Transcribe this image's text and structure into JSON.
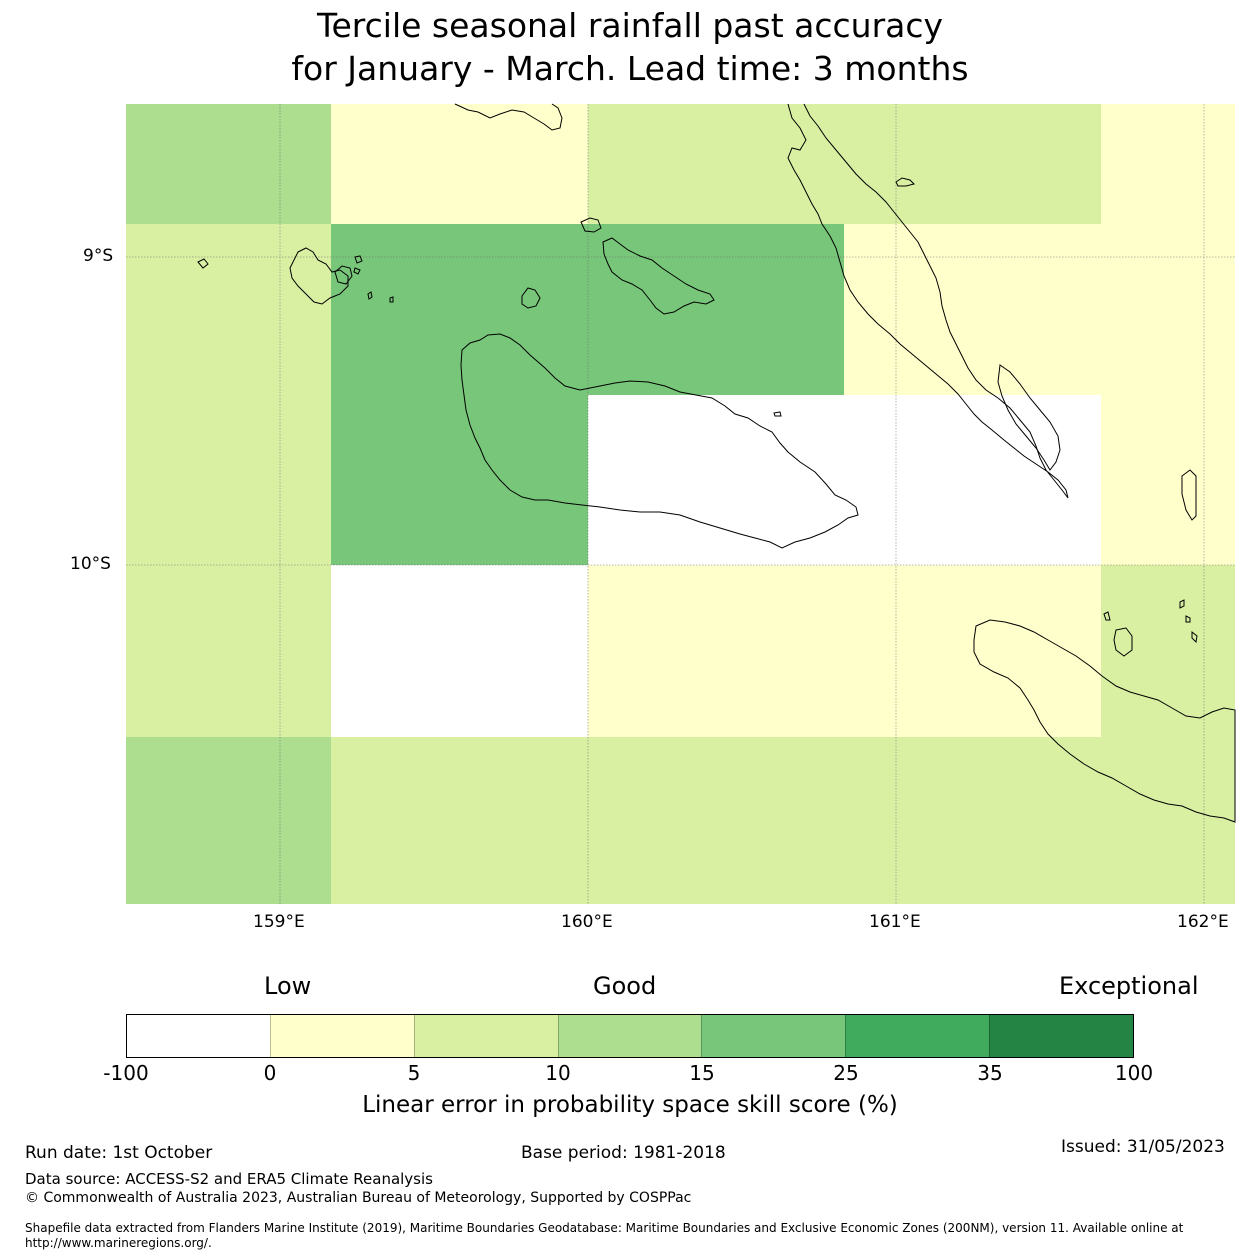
{
  "title": {
    "line1": "Tercile seasonal rainfall past accuracy",
    "line2": "for January - March. Lead time: 3 months"
  },
  "map": {
    "lat_labels": [
      "9°S",
      "10°S"
    ],
    "lon_labels": [
      "159°E",
      "160°E",
      "161°E",
      "162°E"
    ],
    "extent": {
      "lon_min": 158.5,
      "lon_max": 162.1,
      "lat_max": -8.5,
      "lat_min": -11.1
    },
    "skill_cells": [
      {
        "lon_range": [
          158.5,
          159.167
        ],
        "lat_range": [
          -8.5,
          -8.889
        ],
        "category": "10-15"
      },
      {
        "lon_range": [
          159.167,
          160.0
        ],
        "lat_range": [
          -8.5,
          -8.889
        ],
        "category": "0-5"
      },
      {
        "lon_range": [
          160.0,
          161.667
        ],
        "lat_range": [
          -8.5,
          -8.889
        ],
        "category": "5-10"
      },
      {
        "lon_range": [
          161.667,
          162.1
        ],
        "lat_range": [
          -8.5,
          -8.889
        ],
        "category": "0-5"
      },
      {
        "lon_range": [
          158.5,
          159.167
        ],
        "lat_range": [
          -8.889,
          -10.0
        ],
        "category": "5-10"
      },
      {
        "lon_range": [
          159.167,
          160.0
        ],
        "lat_range": [
          -8.889,
          -10.0
        ],
        "category": "15-25"
      },
      {
        "lon_range": [
          160.0,
          160.833
        ],
        "lat_range": [
          -8.889,
          -9.444
        ],
        "category": "15-25"
      },
      {
        "lon_range": [
          160.833,
          162.1
        ],
        "lat_range": [
          -8.889,
          -9.444
        ],
        "category": "0-5"
      },
      {
        "lon_range": [
          160.0,
          161.667
        ],
        "lat_range": [
          -9.444,
          -10.0
        ],
        "category": "-100-0"
      },
      {
        "lon_range": [
          161.667,
          162.1
        ],
        "lat_range": [
          -9.444,
          -10.0
        ],
        "category": "0-5"
      },
      {
        "lon_range": [
          158.5,
          159.167
        ],
        "lat_range": [
          -10.0,
          -10.556
        ],
        "category": "5-10"
      },
      {
        "lon_range": [
          159.167,
          160.0
        ],
        "lat_range": [
          -10.0,
          -10.556
        ],
        "category": "-100-0"
      },
      {
        "lon_range": [
          160.0,
          161.667
        ],
        "lat_range": [
          -10.0,
          -10.556
        ],
        "category": "0-5"
      },
      {
        "lon_range": [
          161.667,
          162.1
        ],
        "lat_range": [
          -10.0,
          -10.556
        ],
        "category": "5-10"
      },
      {
        "lon_range": [
          158.5,
          159.167
        ],
        "lat_range": [
          -10.556,
          -11.1
        ],
        "category": "10-15"
      },
      {
        "lon_range": [
          159.167,
          162.1
        ],
        "lat_range": [
          -10.556,
          -11.1
        ],
        "category": "5-10"
      }
    ]
  },
  "colorbar": {
    "categories": [
      "Low",
      "Good",
      "Exceptional"
    ],
    "ticks": [
      "-100",
      "0",
      "5",
      "10",
      "15",
      "25",
      "35",
      "100"
    ],
    "colors": [
      "#ffffff",
      "#ffffcc",
      "#d9f0a3",
      "#addd8e",
      "#78c679",
      "#41ab5d",
      "#238443"
    ],
    "label": "Linear error in probability space skill score (%)"
  },
  "footer": {
    "run_date": "Run date: 1st October",
    "base_period": "Base period: 1981-2018",
    "issued": "Issued: 31/05/2023",
    "data_source": "Data source: ACCESS-S2 and ERA5 Climate Reanalysis",
    "copyright": "© Commonwealth of Australia 2023, Australian Bureau of Meteorology, Supported by COSPPac",
    "shapefile_line1": "Shapefile data extracted from Flanders Marine Institute (2019), Maritime Boundaries Geodatabase: Maritime Boundaries and Exclusive Economic Zones (200NM), version 11. Available online at",
    "shapefile_line2": "http://www.marineregions.org/."
  }
}
